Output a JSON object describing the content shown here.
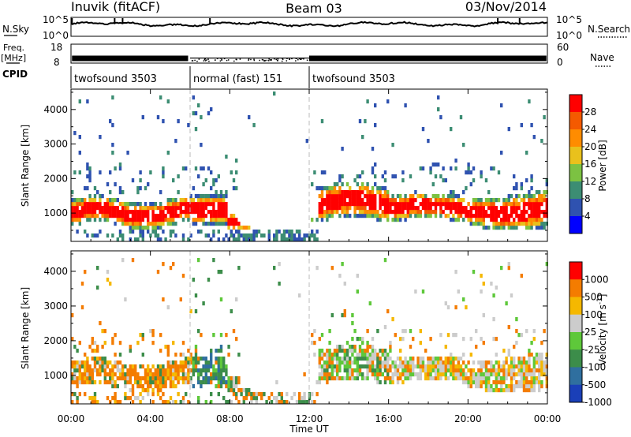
{
  "header": {
    "station": "Inuvik (fitACF)",
    "beam": "Beam 03",
    "date": "03/Nov/2014"
  },
  "noise_panel": {
    "left_label": "N.Sky",
    "right_label": "N.Search",
    "left_ticks": [
      "10^5",
      "10^0"
    ],
    "right_ticks": [
      "10^5",
      "10^0"
    ],
    "log_range": [
      0,
      5
    ],
    "series_level_log": 3.2
  },
  "freq_panel": {
    "left_label_top": "Freq.",
    "left_label_unit": "[MHz]",
    "right_label": "Nave",
    "left_ticks": [
      "18",
      "8"
    ],
    "right_ticks": [
      "60",
      "0"
    ],
    "freq_range": [
      8,
      18
    ],
    "nave_range": [
      0,
      60
    ],
    "freq_level_mhz": 10.5,
    "cpid_label": "CPID"
  },
  "cpid_segments": [
    {
      "start_hour": 0,
      "end_hour": 6,
      "label": "twofsound 3503"
    },
    {
      "start_hour": 6,
      "end_hour": 12,
      "label": "normal (fast) 151"
    },
    {
      "start_hour": 12,
      "end_hour": 24,
      "label": "twofsound 3503"
    }
  ],
  "chart_data": [
    {
      "type": "heatmap",
      "title": "",
      "quantity": "Power",
      "colorbar_label": "Power [dB]",
      "colorbar_ticks": [
        "4",
        "8",
        "12",
        "16",
        "20",
        "24",
        "28"
      ],
      "colorbar_range": [
        0,
        30
      ],
      "colorbar_colors": [
        "#0000ff",
        "#2f52b0",
        "#3c8d73",
        "#7cc242",
        "#e9c11c",
        "#ff8c00",
        "#f45a00",
        "#ff0000"
      ],
      "ylabel": "Slant Range [km]",
      "yticks": [
        "1000",
        "2000",
        "3000",
        "4000"
      ],
      "ylim": [
        180,
        4590
      ],
      "xlim": [
        0,
        24
      ],
      "mode_change_hours": [
        6,
        12
      ]
    },
    {
      "type": "heatmap",
      "title": "",
      "quantity": "Velocity",
      "colorbar_label": "Velocity [m s^-1]",
      "colorbar_ticks": [
        "1000",
        "500",
        "100",
        "25",
        "-25",
        "-100",
        "-500",
        "-1000"
      ],
      "colorbar_colors": [
        "#1a3fb8",
        "#2f6f9f",
        "#3c8d4a",
        "#5ec83a",
        "#cccccc",
        "#f5b800",
        "#f47c00",
        "#ff0000"
      ],
      "ylabel": "Slant Range [km]",
      "yticks": [
        "1000",
        "2000",
        "3000",
        "4000"
      ],
      "ylim": [
        180,
        4590
      ],
      "xlim": [
        0,
        24
      ],
      "xlabel": "Time UT",
      "xticks": [
        "00:00",
        "04:00",
        "08:00",
        "12:00",
        "16:00",
        "20:00",
        "00:00"
      ],
      "mode_change_hours": [
        6,
        12
      ]
    }
  ]
}
